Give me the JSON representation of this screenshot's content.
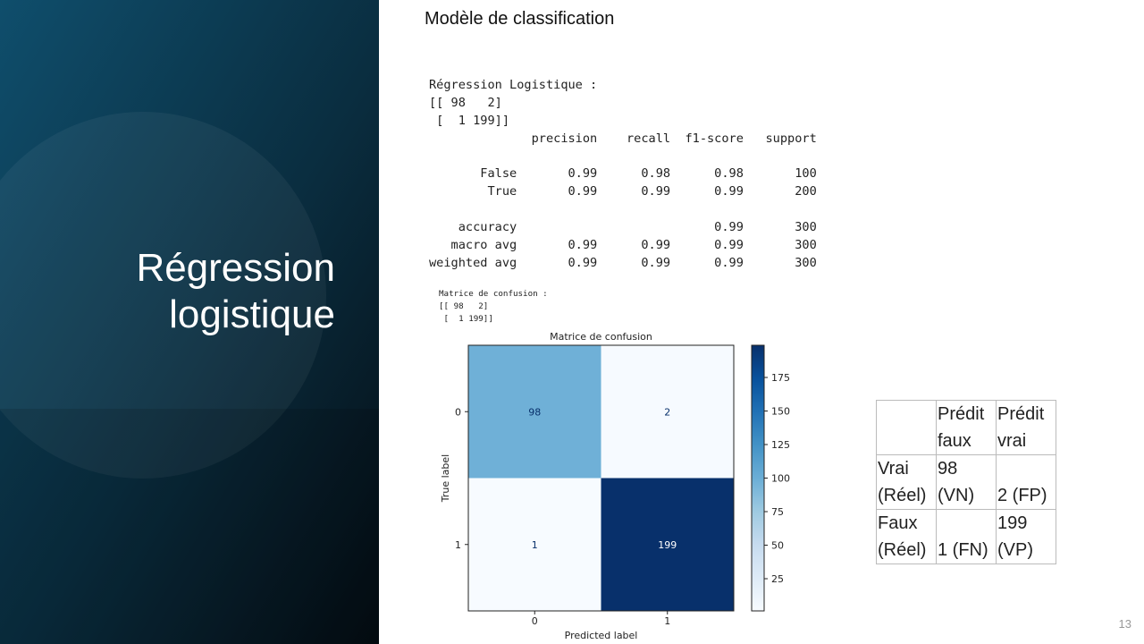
{
  "slide": {
    "title": "Régression logistique",
    "subtitle": "Modèle de classification",
    "page_number": "13"
  },
  "console": {
    "heading": [
      "Régression Logistique :",
      "[[ 98   2]",
      " [  1 199]]",
      "              precision    recall  f1-score   support"
    ],
    "class_rows": [
      "       False       0.99      0.98      0.98       100",
      "        True       0.99      0.99      0.99       200"
    ],
    "avg_rows": [
      "    accuracy                           0.99       300",
      "   macro avg       0.99      0.99      0.99       300",
      "weighted avg       0.99      0.99      0.99       300"
    ],
    "matrix_print": [
      "Matrice de confusion :",
      "[[ 98   2]",
      " [  1 199]]"
    ]
  },
  "chart_data": {
    "type": "heatmap",
    "title": "Matrice de confusion",
    "x_label": "Predicted label",
    "y_label": "True label",
    "x_categories": [
      "0",
      "1"
    ],
    "y_categories": [
      "0",
      "1"
    ],
    "values": [
      [
        98,
        2
      ],
      [
        1,
        199
      ]
    ],
    "clim": [
      1,
      199
    ],
    "colorbar_ticks": [
      25,
      50,
      75,
      100,
      125,
      150,
      175
    ],
    "colormap": [
      "#f7fbff",
      "#deebf7",
      "#c6dbef",
      "#9ecae1",
      "#6baed6",
      "#4292c6",
      "#2171b5",
      "#08519c",
      "#08306b"
    ]
  },
  "table": {
    "header": [
      "Prédit faux",
      "Prédit vrai"
    ],
    "rows": [
      [
        "Vrai (Réel)",
        "98 (VN)",
        "2 (FP)"
      ],
      [
        "Faux (Réel)",
        "1 (FN)",
        "199 (VP)"
      ]
    ]
  }
}
